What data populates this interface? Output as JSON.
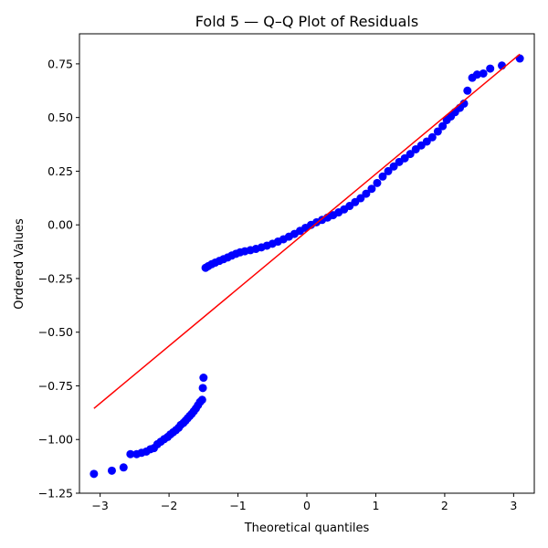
{
  "chart_data": {
    "type": "scatter",
    "title": "Fold 5 — Q–Q Plot of Residuals",
    "xlabel": "Theoretical quantiles",
    "ylabel": "Ordered Values",
    "xlim": [
      -3.3,
      3.3
    ],
    "ylim": [
      -1.25,
      0.89
    ],
    "x_ticks": [
      -3,
      -2,
      -1,
      0,
      1,
      2,
      3
    ],
    "x_tick_labels": [
      "−3",
      "−2",
      "−1",
      "0",
      "1",
      "2",
      "3"
    ],
    "y_ticks": [
      -1.25,
      -1.0,
      -0.75,
      -0.5,
      -0.25,
      0.0,
      0.25,
      0.5,
      0.75
    ],
    "y_tick_labels": [
      "−1.25",
      "−1.00",
      "−0.75",
      "−0.50",
      "−0.25",
      "0.00",
      "0.25",
      "0.50",
      "0.75"
    ],
    "grid": false,
    "legend": "none",
    "series": [
      {
        "kind": "points",
        "color": "#0000ff",
        "points": [
          [
            -3.09,
            -1.16
          ],
          [
            -2.83,
            -1.145
          ],
          [
            -2.66,
            -1.13
          ],
          [
            -2.56,
            -1.068
          ],
          [
            -2.47,
            -1.068
          ],
          [
            -2.4,
            -1.062
          ],
          [
            -2.33,
            -1.056
          ],
          [
            -2.27,
            -1.045
          ],
          [
            -2.22,
            -1.04
          ],
          [
            -2.17,
            -1.022
          ],
          [
            -2.12,
            -1.01
          ],
          [
            -2.07,
            -0.998
          ],
          [
            -2.02,
            -0.988
          ],
          [
            -1.98,
            -0.976
          ],
          [
            -1.94,
            -0.966
          ],
          [
            -1.9,
            -0.956
          ],
          [
            -1.86,
            -0.945
          ],
          [
            -1.83,
            -0.932
          ],
          [
            -1.79,
            -0.922
          ],
          [
            -1.76,
            -0.912
          ],
          [
            -1.73,
            -0.901
          ],
          [
            -1.7,
            -0.89
          ],
          [
            -1.67,
            -0.88
          ],
          [
            -1.64,
            -0.868
          ],
          [
            -1.61,
            -0.855
          ],
          [
            -1.58,
            -0.84
          ],
          [
            -1.55,
            -0.825
          ],
          [
            -1.52,
            -0.815
          ],
          [
            -1.51,
            -0.76
          ],
          [
            -1.5,
            -0.712
          ],
          [
            -1.47,
            -0.2
          ],
          [
            -1.43,
            -0.192
          ],
          [
            -1.38,
            -0.183
          ],
          [
            -1.33,
            -0.176
          ],
          [
            -1.27,
            -0.168
          ],
          [
            -1.21,
            -0.16
          ],
          [
            -1.15,
            -0.152
          ],
          [
            -1.09,
            -0.143
          ],
          [
            -1.03,
            -0.135
          ],
          [
            -0.97,
            -0.128
          ],
          [
            -0.9,
            -0.123
          ],
          [
            -0.82,
            -0.118
          ],
          [
            -0.74,
            -0.112
          ],
          [
            -0.66,
            -0.105
          ],
          [
            -0.58,
            -0.097
          ],
          [
            -0.5,
            -0.088
          ],
          [
            -0.42,
            -0.078
          ],
          [
            -0.34,
            -0.067
          ],
          [
            -0.26,
            -0.055
          ],
          [
            -0.18,
            -0.042
          ],
          [
            -0.1,
            -0.028
          ],
          [
            -0.02,
            -0.014
          ],
          [
            0.06,
            0.0
          ],
          [
            0.14,
            0.012
          ],
          [
            0.22,
            0.023
          ],
          [
            0.3,
            0.034
          ],
          [
            0.38,
            0.045
          ],
          [
            0.46,
            0.058
          ],
          [
            0.54,
            0.072
          ],
          [
            0.62,
            0.088
          ],
          [
            0.7,
            0.106
          ],
          [
            0.78,
            0.124
          ],
          [
            0.86,
            0.145
          ],
          [
            0.94,
            0.168
          ],
          [
            1.02,
            0.195
          ],
          [
            1.1,
            0.225
          ],
          [
            1.18,
            0.25
          ],
          [
            1.26,
            0.272
          ],
          [
            1.34,
            0.293
          ],
          [
            1.42,
            0.31
          ],
          [
            1.5,
            0.33
          ],
          [
            1.58,
            0.352
          ],
          [
            1.66,
            0.37
          ],
          [
            1.74,
            0.388
          ],
          [
            1.82,
            0.408
          ],
          [
            1.9,
            0.435
          ],
          [
            1.97,
            0.46
          ],
          [
            2.03,
            0.488
          ],
          [
            2.09,
            0.505
          ],
          [
            2.15,
            0.525
          ],
          [
            2.22,
            0.545
          ],
          [
            2.28,
            0.565
          ],
          [
            2.33,
            0.625
          ],
          [
            2.4,
            0.685
          ],
          [
            2.47,
            0.7
          ],
          [
            2.56,
            0.705
          ],
          [
            2.66,
            0.728
          ],
          [
            2.83,
            0.742
          ],
          [
            3.09,
            0.775
          ]
        ]
      },
      {
        "kind": "line",
        "color": "#ff0000",
        "points": [
          [
            -3.09,
            -0.855
          ],
          [
            3.09,
            0.795
          ]
        ]
      }
    ]
  }
}
